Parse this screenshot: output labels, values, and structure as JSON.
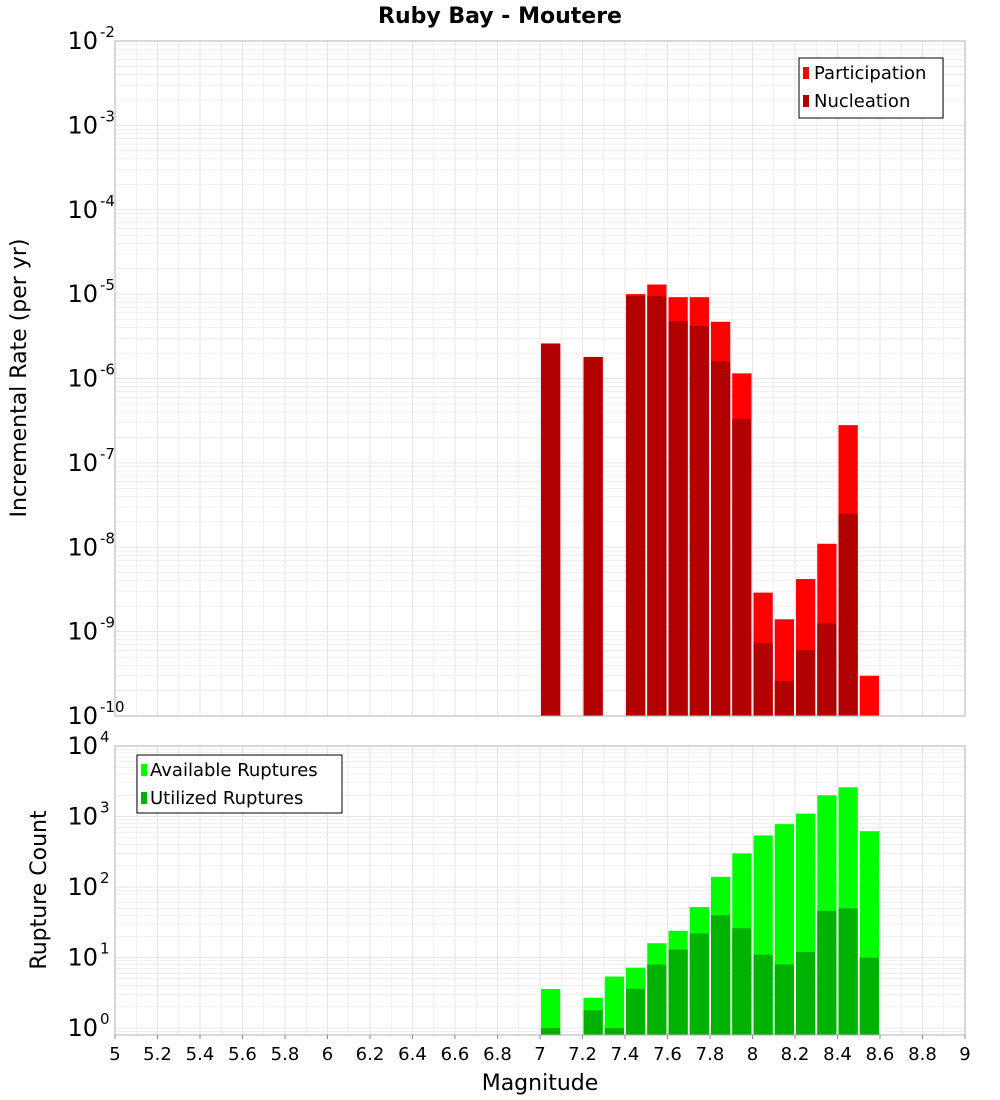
{
  "title": "Ruby Bay - Moutere",
  "colors": {
    "participation": "#ff0000",
    "nucleation": "#b20000",
    "available": "#00ff00",
    "utilized": "#00b200",
    "grid": "#e6e6e6",
    "frame": "#b0b0b0"
  },
  "chart_data": [
    {
      "type": "bar",
      "title": "Ruby Bay - Moutere",
      "xlabel": "",
      "ylabel": "Incremental Rate (per yr)",
      "yscale": "log",
      "xlim": [
        5,
        9
      ],
      "ylim": [
        1e-10,
        0.01
      ],
      "ytick_exponents": [
        "-2",
        "-3",
        "-4",
        "-5",
        "-6",
        "-7",
        "-8",
        "-9",
        "-10"
      ],
      "grid": true,
      "legend_position": "top-right",
      "bar_width": 0.1,
      "series": [
        {
          "name": "Participation",
          "color": "#ff0000",
          "x": [
            7.05,
            7.25,
            7.45,
            7.55,
            7.65,
            7.75,
            7.85,
            7.95,
            8.05,
            8.15,
            8.25,
            8.35,
            8.45,
            8.55
          ],
          "values": [
            2.6e-06,
            1.8e-06,
            1e-05,
            1.3e-05,
            9.2e-06,
            9.2e-06,
            4.7e-06,
            1.15e-06,
            2.9e-09,
            1.4e-09,
            4.2e-09,
            1.1e-08,
            2.8e-07,
            3e-10
          ]
        },
        {
          "name": "Nucleation",
          "color": "#b20000",
          "x": [
            7.05,
            7.25,
            7.45,
            7.55,
            7.65,
            7.75,
            7.85,
            7.95,
            8.05,
            8.15,
            8.25,
            8.35,
            8.45
          ],
          "values": [
            2.6e-06,
            1.8e-06,
            9.5e-06,
            9.5e-06,
            4.8e-06,
            4.2e-06,
            1.6e-06,
            3.3e-07,
            7.3e-10,
            2.6e-10,
            6e-10,
            1.25e-09,
            2.5e-08
          ]
        }
      ]
    },
    {
      "type": "bar",
      "xlabel": "Magnitude",
      "ylabel": "Rupture Count",
      "yscale": "log",
      "xlim": [
        5,
        9
      ],
      "ylim": [
        0.8,
        10000
      ],
      "ytick_exponents": [
        "4",
        "3",
        "2",
        "1",
        "0"
      ],
      "xticks": [
        "5",
        "5.2",
        "5.4",
        "5.6",
        "5.8",
        "6",
        "6.2",
        "6.4",
        "6.6",
        "6.8",
        "7",
        "7.2",
        "7.4",
        "7.6",
        "7.8",
        "8",
        "8.2",
        "8.4",
        "8.6",
        "8.8",
        "9"
      ],
      "grid": true,
      "legend_position": "top-left",
      "bar_width": 0.1,
      "series": [
        {
          "name": "Available Ruptures",
          "color": "#00ff00",
          "x": [
            7.05,
            7.25,
            7.35,
            7.45,
            7.55,
            7.65,
            7.75,
            7.85,
            7.95,
            8.05,
            8.15,
            8.25,
            8.35,
            8.45,
            8.55
          ],
          "values": [
            3.6,
            2.7,
            5.4,
            7.2,
            16,
            24,
            52,
            140,
            300,
            540,
            780,
            1100,
            2000,
            2600,
            620
          ]
        },
        {
          "name": "Utilized Ruptures",
          "color": "#00b200",
          "x": [
            7.05,
            7.25,
            7.35,
            7.45,
            7.55,
            7.65,
            7.75,
            7.85,
            7.95,
            8.05,
            8.15,
            8.25,
            8.35,
            8.45,
            8.55
          ],
          "values": [
            1,
            1.8,
            1,
            3.6,
            8,
            13,
            22,
            40,
            26,
            11,
            8,
            12,
            46,
            50,
            10
          ]
        }
      ]
    }
  ]
}
